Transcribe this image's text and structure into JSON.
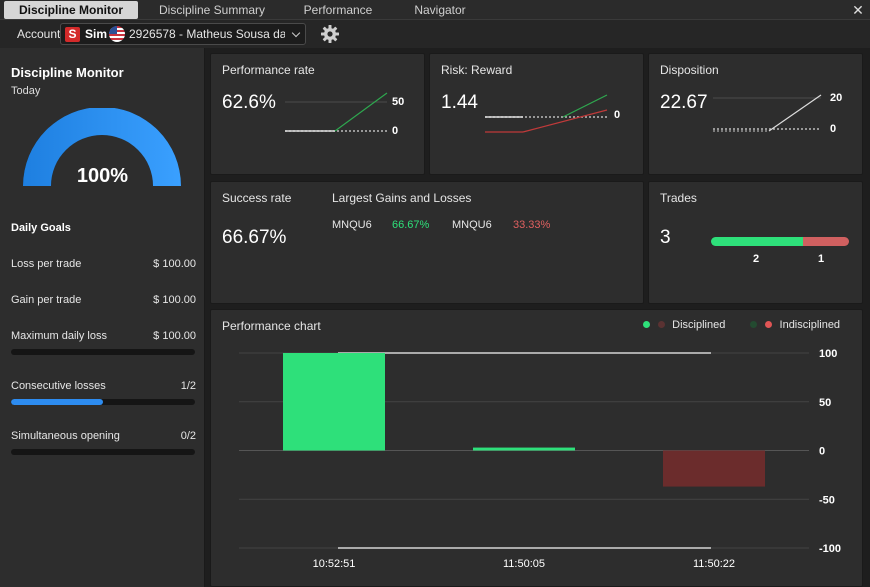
{
  "tabs": [
    {
      "label": "Discipline Monitor",
      "active": true
    },
    {
      "label": "Discipline Summary",
      "active": false
    },
    {
      "label": "Performance",
      "active": false
    },
    {
      "label": "Navigator",
      "active": false
    }
  ],
  "close_glyph": "✕",
  "account": {
    "label": "Account",
    "badge": "S",
    "mode": "Sim",
    "flag_icon": "us-flag-icon",
    "selected": "2926578 - Matheus Sousa da ..."
  },
  "sidebar": {
    "title": "Discipline Monitor",
    "period": "Today",
    "gauge_percent": "100%",
    "gauge_fraction": 1.0,
    "goals_title": "Daily Goals",
    "goals": [
      {
        "label": "Loss per trade",
        "value": "$ 100.00"
      },
      {
        "label": "Gain per trade",
        "value": "$ 100.00"
      },
      {
        "label": "Maximum daily loss",
        "value": "$ 100.00",
        "progress": 0.0
      },
      {
        "label": "Consecutive losses",
        "value": "1/2",
        "progress": 0.5
      },
      {
        "label": "Simultaneous opening",
        "value": "0/2",
        "progress": 0.0
      }
    ]
  },
  "performance_rate": {
    "title": "Performance rate",
    "value": "62.6%",
    "axis_top": "50",
    "axis_zero": "0"
  },
  "risk_reward": {
    "title": "Risk: Reward",
    "value": "1.44",
    "axis_zero": "0"
  },
  "disposition": {
    "title": "Disposition",
    "value": "22.67",
    "axis_top": "20",
    "axis_zero": "0"
  },
  "success_rate": {
    "title": "Success rate",
    "value": "66.67%"
  },
  "gains_losses": {
    "title": "Largest Gains and Losses",
    "gain_symbol": "MNQU6",
    "gain_value": "66.67%",
    "loss_symbol": "MNQU6",
    "loss_value": "33.33%"
  },
  "trades": {
    "title": "Trades",
    "total": "3",
    "wins": "2",
    "losses": "1",
    "win_fraction": 0.6667
  },
  "colors": {
    "win": "#2ee07a",
    "loss": "#d06060",
    "accent": "#2d8cf0",
    "loss_bar": "#6b2c2c"
  },
  "chart_data": {
    "type": "bar",
    "title": "Performance chart",
    "series": [
      {
        "name": "Disciplined",
        "color": "#2ee07a"
      },
      {
        "name": "Indisciplined",
        "color": "#e05555"
      }
    ],
    "categories": [
      "10:52:51",
      "11:50:05",
      "11:50:22"
    ],
    "values": [
      100,
      3,
      -37
    ],
    "bar_series": [
      "Disciplined",
      "Disciplined",
      "Indisciplined"
    ],
    "yticks": [
      "100",
      "50",
      "0",
      "-50",
      "-100"
    ],
    "ylim": [
      -100,
      100
    ],
    "grid": true,
    "legend": "top-right"
  }
}
